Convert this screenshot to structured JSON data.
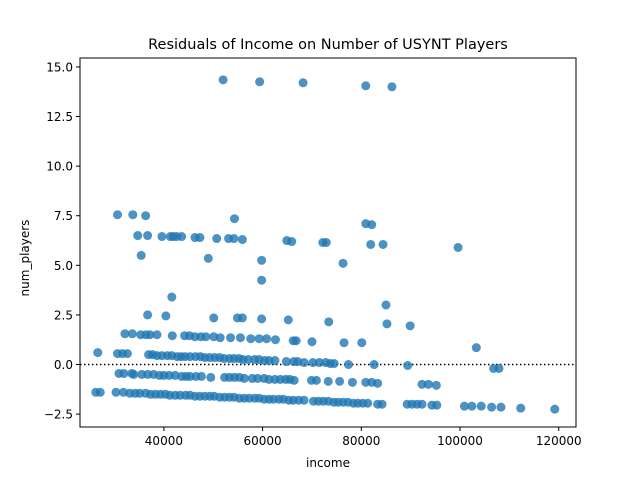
{
  "chart_data": {
    "type": "scatter",
    "title": "Residuals of Income on Number of USYNT Players",
    "xlabel": "income",
    "ylabel": "num_players",
    "xlim": [
      23000,
      123500
    ],
    "ylim": [
      -3.15,
      15.45
    ],
    "xticks": [
      40000,
      60000,
      80000,
      100000,
      120000
    ],
    "yticks": [
      -2.5,
      0.0,
      2.5,
      5.0,
      7.5,
      10.0,
      12.5,
      15.0
    ],
    "xtick_labels": [
      "40000",
      "60000",
      "80000",
      "100000",
      "120000"
    ],
    "ytick_labels": [
      "−2.5",
      "0.0",
      "2.5",
      "5.0",
      "7.5",
      "10.0",
      "12.5",
      "15.0"
    ],
    "reference_line": {
      "y": 0,
      "style": "dotted"
    },
    "grid": false,
    "marker_color": "#1f77b4",
    "marker_alpha": 0.8,
    "series": [
      {
        "x": [
          52000,
          59400,
          68200,
          80900,
          86200,
          30600,
          33700,
          36300,
          54300,
          80900,
          82100,
          34700,
          36700,
          39600,
          41300,
          41900,
          42600,
          43600,
          46300,
          47300,
          50700,
          53100,
          54200,
          55900,
          64900,
          65900,
          72200,
          72900,
          81900,
          84400,
          99600,
          35400,
          59800,
          49000,
          76300,
          59800,
          41600,
          85000,
          36700,
          40400,
          50100,
          54900,
          55900,
          59800,
          65200,
          73400,
          76500,
          85200,
          89900,
          32100,
          33600,
          35300,
          36400,
          37200,
          38600,
          41700,
          44200,
          45200,
          46300,
          47500,
          48500,
          50100,
          51400,
          53500,
          55500,
          57600,
          59300,
          60800,
          62600,
          66200,
          66800,
          70000,
          80100,
          103300,
          26600,
          30600,
          31600,
          32600,
          36900,
          37700,
          38600,
          39600,
          40700,
          41600,
          42700,
          43500,
          44300,
          45300,
          46400,
          47400,
          48300,
          49300,
          50300,
          51300,
          52200,
          53300,
          54200,
          55200,
          56000,
          57100,
          58400,
          59300,
          60400,
          61300,
          62500,
          64800,
          66300,
          67100,
          68400,
          70200,
          71500,
          72800,
          73700,
          74500,
          77400,
          82600,
          89400,
          106800,
          107900,
          30900,
          31900,
          33500,
          33900,
          35500,
          36700,
          37900,
          39100,
          40000,
          41100,
          42300,
          43600,
          44500,
          45300,
          46500,
          47600,
          49500,
          52300,
          53300,
          54300,
          55300,
          56300,
          57900,
          59000,
          60300,
          61300,
          62500,
          63600,
          64700,
          65500,
          66400,
          69900,
          70900,
          73300,
          75600,
          78200,
          80900,
          82100,
          83300,
          92300,
          93600,
          95200,
          26200,
          27100,
          30300,
          31800,
          33100,
          34200,
          35100,
          36300,
          37300,
          38300,
          39300,
          40300,
          41200,
          42300,
          43300,
          44400,
          45300,
          46300,
          47300,
          48300,
          49300,
          50200,
          51300,
          52300,
          53300,
          54200,
          55300,
          56300,
          57300,
          58400,
          59300,
          60300,
          61300,
          62200,
          63300,
          64200,
          65300,
          66200,
          67300,
          68400,
          70300,
          71300,
          72300,
          73300,
          74400,
          75300,
          76300,
          77300,
          78400,
          79300,
          80300,
          81300,
          83300,
          84200,
          89300,
          90300,
          91300,
          92300,
          94300,
          95300,
          100900,
          102400,
          104300,
          106400,
          108300,
          112300,
          119200
        ],
        "y": [
          14.35,
          14.25,
          14.2,
          14.05,
          14.0,
          7.55,
          7.55,
          7.5,
          7.35,
          7.1,
          7.05,
          6.5,
          6.5,
          6.45,
          6.45,
          6.45,
          6.45,
          6.45,
          6.4,
          6.4,
          6.35,
          6.35,
          6.35,
          6.3,
          6.25,
          6.2,
          6.15,
          6.15,
          6.05,
          6.05,
          5.9,
          5.5,
          5.25,
          5.35,
          5.1,
          4.25,
          3.4,
          3.0,
          2.5,
          2.45,
          2.35,
          2.35,
          2.35,
          2.3,
          2.25,
          2.15,
          1.1,
          2.05,
          1.95,
          1.55,
          1.55,
          1.5,
          1.5,
          1.5,
          1.5,
          1.45,
          1.45,
          1.45,
          1.4,
          1.4,
          1.4,
          1.4,
          1.35,
          1.35,
          1.35,
          1.3,
          1.3,
          1.3,
          1.25,
          1.2,
          1.2,
          1.15,
          1.1,
          0.85,
          0.6,
          0.55,
          0.55,
          0.55,
          0.5,
          0.5,
          0.45,
          0.45,
          0.45,
          0.45,
          0.4,
          0.4,
          0.4,
          0.4,
          0.4,
          0.4,
          0.35,
          0.35,
          0.35,
          0.35,
          0.3,
          0.3,
          0.3,
          0.3,
          0.25,
          0.25,
          0.25,
          0.25,
          0.2,
          0.2,
          0.2,
          0.15,
          0.15,
          0.15,
          0.1,
          0.1,
          0.1,
          0.1,
          0.05,
          0.05,
          0.0,
          0.0,
          -0.05,
          -0.2,
          -0.2,
          -0.45,
          -0.45,
          -0.45,
          -0.5,
          -0.5,
          -0.5,
          -0.5,
          -0.55,
          -0.55,
          -0.55,
          -0.55,
          -0.6,
          -0.6,
          -0.6,
          -0.6,
          -0.6,
          -0.65,
          -0.65,
          -0.65,
          -0.65,
          -0.65,
          -0.7,
          -0.7,
          -0.7,
          -0.7,
          -0.75,
          -0.75,
          -0.75,
          -0.75,
          -0.75,
          -0.8,
          -0.8,
          -0.8,
          -0.85,
          -0.85,
          -0.9,
          -0.9,
          -0.9,
          -0.95,
          -1.0,
          -1.0,
          -1.05,
          -1.4,
          -1.4,
          -1.4,
          -1.4,
          -1.45,
          -1.45,
          -1.45,
          -1.45,
          -1.5,
          -1.5,
          -1.5,
          -1.5,
          -1.55,
          -1.55,
          -1.55,
          -1.55,
          -1.55,
          -1.6,
          -1.6,
          -1.6,
          -1.6,
          -1.6,
          -1.65,
          -1.65,
          -1.65,
          -1.65,
          -1.7,
          -1.7,
          -1.7,
          -1.7,
          -1.7,
          -1.75,
          -1.75,
          -1.75,
          -1.75,
          -1.75,
          -1.8,
          -1.8,
          -1.8,
          -1.8,
          -1.85,
          -1.85,
          -1.85,
          -1.85,
          -1.9,
          -1.9,
          -1.9,
          -1.9,
          -1.95,
          -1.95,
          -1.95,
          -1.95,
          -2.0,
          -2.0,
          -2.0,
          -2.0,
          -2.0,
          -2.0,
          -2.05,
          -2.05,
          -2.1,
          -2.1,
          -2.1,
          -2.15,
          -2.15,
          -2.2,
          -2.25
        ]
      }
    ]
  }
}
